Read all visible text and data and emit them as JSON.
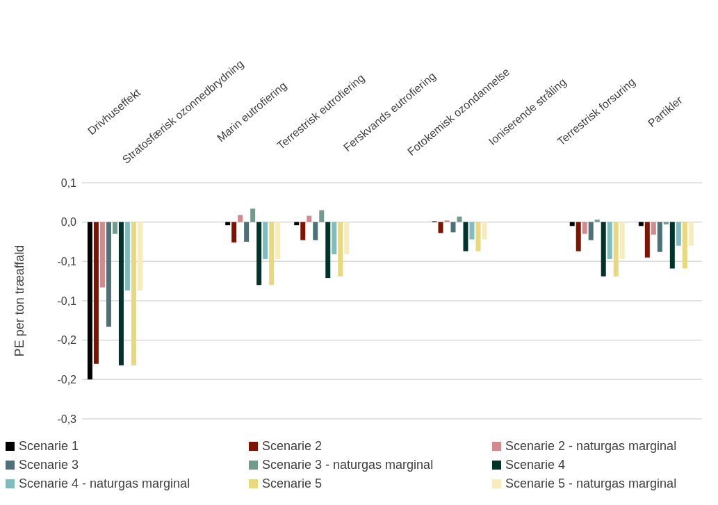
{
  "chart_data": {
    "type": "bar",
    "ylabel": "PE per ton træaffald",
    "categories": [
      "Drivhuseffekt",
      "Stratosfærisk ozonnedbrydning",
      "Marin eutrofiering",
      "Terrestrisk eutrofiering",
      "Ferskvands eutrofiering",
      "Fotokemisk ozondannelse",
      "Ioniserende stråling",
      "Terrestrisk forsuring",
      "Partikler"
    ],
    "series": [
      {
        "name": "Scenarie 1",
        "color": "#000000",
        "values": [
          -0.2,
          null,
          -0.004,
          -0.004,
          null,
          0.001,
          null,
          -0.005,
          -0.005
        ]
      },
      {
        "name": "Scenarie 2",
        "color": "#7f1200",
        "values": [
          -0.18,
          null,
          -0.026,
          -0.023,
          null,
          -0.014,
          null,
          -0.037,
          -0.045
        ]
      },
      {
        "name": "Scenarie 2 - naturgas marginal",
        "color": "#d48a8c",
        "values": [
          -0.083,
          null,
          0.009,
          0.008,
          null,
          0.002,
          null,
          -0.015,
          -0.016
        ]
      },
      {
        "name": "Scenarie 3",
        "color": "#4d7079",
        "values": [
          -0.133,
          null,
          -0.025,
          -0.023,
          null,
          -0.013,
          null,
          -0.023,
          -0.038
        ]
      },
      {
        "name": "Scenarie 3 - naturgas marginal",
        "color": "#739b8d",
        "values": [
          -0.015,
          null,
          0.017,
          0.015,
          null,
          0.007,
          null,
          0.003,
          -0.003
        ]
      },
      {
        "name": "Scenarie 4",
        "color": "#00332a",
        "values": [
          -0.182,
          null,
          -0.08,
          -0.071,
          null,
          -0.037,
          null,
          -0.069,
          -0.059
        ]
      },
      {
        "name": "Scenarie 4 - naturgas marginal",
        "color": "#7fbcbd",
        "values": [
          -0.087,
          null,
          -0.047,
          -0.041,
          null,
          -0.022,
          null,
          -0.047,
          -0.03
        ]
      },
      {
        "name": "Scenarie 5",
        "color": "#e8d87e",
        "values": [
          -0.182,
          null,
          -0.08,
          -0.069,
          null,
          -0.037,
          null,
          -0.069,
          -0.059
        ]
      },
      {
        "name": "Scenarie 5 - naturgas marginal",
        "color": "#f8ecbc",
        "values": [
          -0.087,
          null,
          -0.047,
          -0.041,
          null,
          -0.022,
          null,
          -0.047,
          -0.03
        ]
      }
    ],
    "ylim": [
      -0.25,
      0.05
    ],
    "yticks": [
      {
        "value": 0.05,
        "label": "0,1"
      },
      {
        "value": 0,
        "label": "0,0"
      },
      {
        "value": -0.05,
        "label": "-0,1"
      },
      {
        "value": -0.1,
        "label": "-0,1"
      },
      {
        "value": -0.15,
        "label": "-0,2"
      },
      {
        "value": -0.2,
        "label": "-0,2"
      },
      {
        "value": -0.25,
        "label": "-0,3"
      }
    ],
    "grid": "y",
    "legend": "bottom"
  }
}
